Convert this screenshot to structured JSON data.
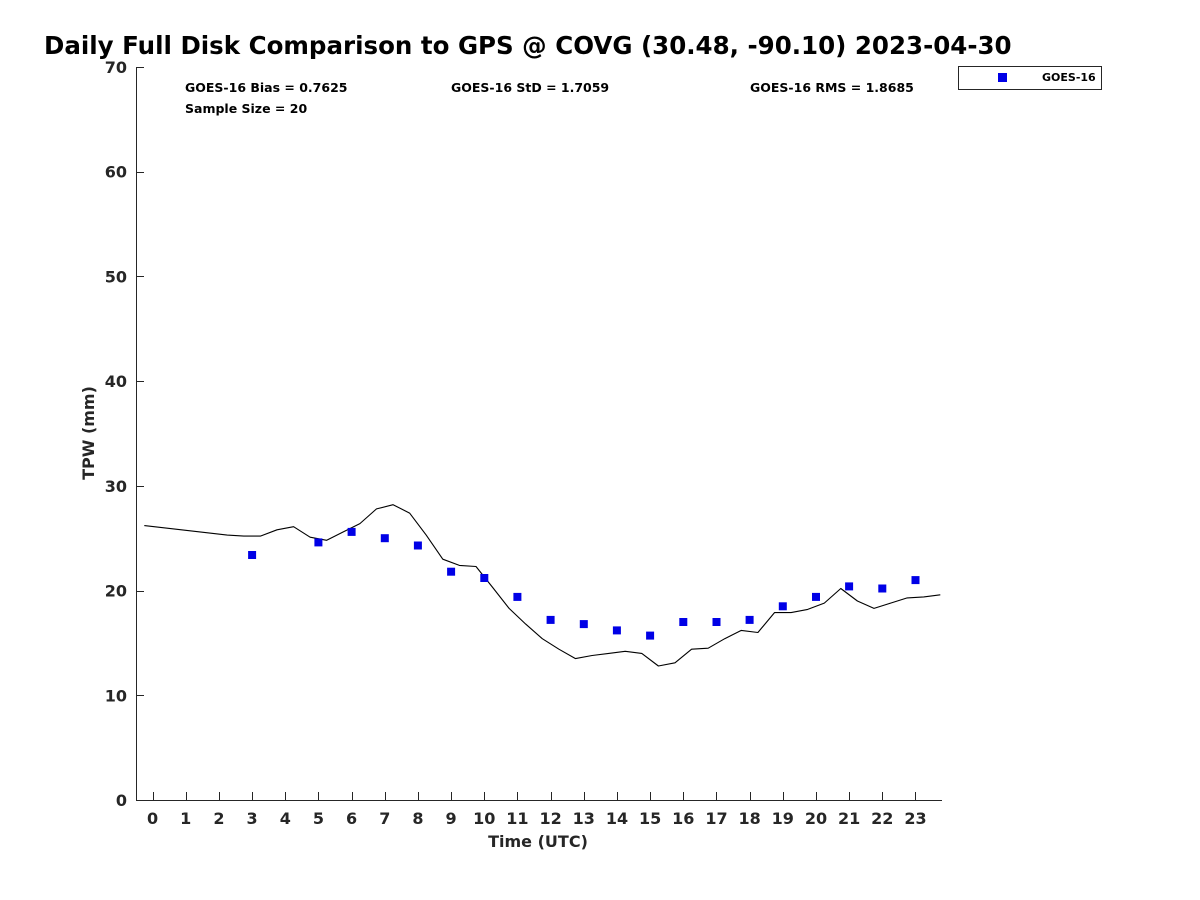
{
  "chart_data": {
    "type": "scatter",
    "title": "Daily Full Disk Comparison to GPS @ COVG (30.48, -90.10) 2023-04-30",
    "xlabel": "Time (UTC)",
    "ylabel": "TPW (mm)",
    "xlim": [
      -0.5,
      23.8
    ],
    "ylim": [
      0,
      70
    ],
    "x_ticks": [
      0,
      1,
      2,
      3,
      4,
      5,
      6,
      7,
      8,
      9,
      10,
      11,
      12,
      13,
      14,
      15,
      16,
      17,
      18,
      19,
      20,
      21,
      22,
      23
    ],
    "y_ticks": [
      0,
      10,
      20,
      30,
      40,
      50,
      60,
      70
    ],
    "grid": false,
    "legend_position": "top-right-outside",
    "stats": {
      "bias": "GOES-16 Bias = 0.7625",
      "std": "GOES-16 StD = 1.7059",
      "rms": "GOES-16 RMS = 1.8685",
      "sample": "Sample Size = 20"
    },
    "series": [
      {
        "name": "GOES-16",
        "kind": "scatter",
        "marker": "square",
        "color": "#0000e6",
        "x": [
          3,
          5,
          6,
          7,
          8,
          9,
          10,
          11,
          12,
          13,
          14,
          15,
          16,
          17,
          18,
          19,
          20,
          21,
          22,
          23
        ],
        "y": [
          23.4,
          24.6,
          25.6,
          25.0,
          24.3,
          21.8,
          21.2,
          19.4,
          17.2,
          16.8,
          16.2,
          15.7,
          17.0,
          17.0,
          17.2,
          18.5,
          19.4,
          20.4,
          20.2,
          21.0
        ]
      },
      {
        "kind": "line",
        "color": "#000000",
        "x": [
          -0.25,
          2.25,
          2.75,
          3.25,
          3.75,
          4.25,
          4.75,
          5.25,
          5.75,
          6.25,
          6.75,
          7.25,
          7.75,
          8.25,
          8.75,
          9.25,
          9.75,
          10.25,
          10.75,
          11.25,
          11.75,
          12.25,
          12.75,
          13.25,
          13.75,
          14.25,
          14.75,
          15.25,
          15.75,
          16.25,
          16.75,
          17.25,
          17.75,
          18.25,
          18.75,
          19.25,
          19.75,
          20.25,
          20.75,
          21.25,
          21.75,
          22.25,
          22.75,
          23.25,
          23.75
        ],
        "y": [
          26.2,
          25.3,
          25.2,
          25.2,
          25.8,
          26.1,
          25.1,
          24.8,
          25.6,
          26.4,
          27.8,
          28.2,
          27.4,
          25.3,
          23.0,
          22.4,
          22.3,
          20.3,
          18.3,
          16.8,
          15.4,
          14.4,
          13.5,
          13.8,
          14.0,
          14.2,
          14.0,
          12.8,
          13.1,
          14.4,
          14.5,
          15.4,
          16.2,
          16.0,
          17.9,
          17.9,
          18.2,
          18.8,
          20.2,
          19.0,
          18.3,
          18.8,
          19.3,
          19.4,
          19.6
        ]
      }
    ]
  }
}
